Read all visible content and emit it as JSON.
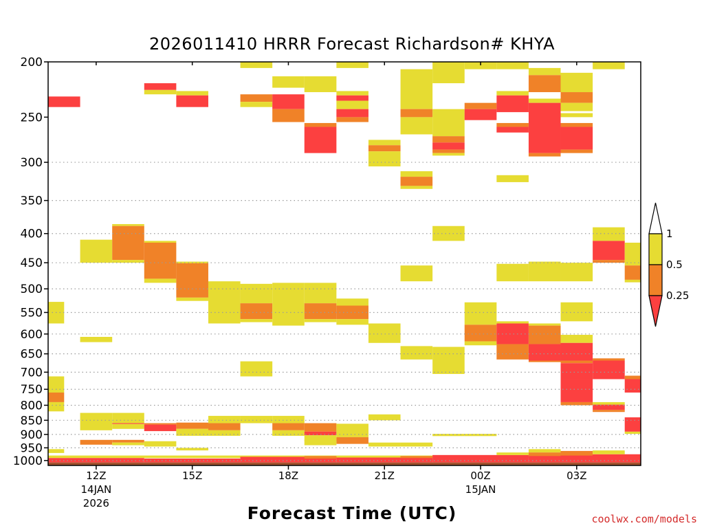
{
  "title": "2026011410 HRRR Forecast Richardson# KHYA",
  "xaxis_title": "Forecast Time (UTC)",
  "credit": "coolwx.com/models",
  "colors": {
    "ri_0_025": "#fc4040",
    "ri_025_05": "#f08228",
    "ri_05_1": "#e6dc32",
    "ground": "#a0522d",
    "grid": "#9a9a9a"
  },
  "chart_data": {
    "type": "heatmap",
    "title": "2026011410 HRRR Forecast Richardson# KHYA",
    "xlabel": "Forecast Time (UTC)",
    "ylabel": "",
    "y_scale": "log",
    "y_reversed": true,
    "ylim": [
      200,
      1020
    ],
    "y_ticks": [
      200,
      250,
      300,
      350,
      400,
      450,
      500,
      550,
      600,
      650,
      700,
      750,
      800,
      850,
      900,
      950,
      1000
    ],
    "grid_levels": [
      300,
      350,
      400,
      450,
      500,
      550,
      600,
      650,
      700,
      750,
      800,
      850,
      900,
      950,
      1000
    ],
    "x_unit": "forecast hour from 2026-01-14 10Z",
    "xlim": [
      10.5,
      28.5
    ],
    "x_ticks": [
      {
        "hour": 12,
        "label": "12Z",
        "sub": [
          "14JAN",
          "2026"
        ]
      },
      {
        "hour": 15,
        "label": "15Z",
        "sub": []
      },
      {
        "hour": 18,
        "label": "18Z",
        "sub": []
      },
      {
        "hour": 21,
        "label": "21Z",
        "sub": []
      },
      {
        "hour": 24,
        "label": "00Z",
        "sub": [
          "15JAN"
        ]
      },
      {
        "hour": 27,
        "label": "03Z",
        "sub": []
      }
    ],
    "legend": {
      "placement": "right",
      "labels": [
        {
          "value": "1",
          "at": 1
        },
        {
          "value": "0.5",
          "at": 0.5
        },
        {
          "value": "0.25",
          "at": 0.25
        }
      ],
      "bins": [
        {
          "range": "<0.25",
          "color": "#fc4040"
        },
        {
          "range": "0.25-0.5",
          "color": "#f08228"
        },
        {
          "range": "0.5-1",
          "color": "#e6dc32"
        },
        {
          "range": ">1",
          "color": "#ffffff"
        }
      ]
    },
    "categories": [
      "Ri<0.25",
      "0.25<=Ri<0.5",
      "0.5<=Ri<1"
    ],
    "cells": [
      [
        10.5,
        11.5,
        230,
        240,
        "r"
      ],
      [
        13.5,
        14.5,
        218,
        224,
        "r"
      ],
      [
        13.5,
        14.5,
        224,
        228,
        "y"
      ],
      [
        14.5,
        15.5,
        225,
        229,
        "y"
      ],
      [
        14.5,
        15.5,
        229,
        240,
        "r"
      ],
      [
        16.5,
        17.5,
        200,
        205,
        "y"
      ],
      [
        16.5,
        17.5,
        228,
        235,
        "o"
      ],
      [
        16.5,
        17.5,
        235,
        240,
        "y"
      ],
      [
        17.5,
        18.5,
        212,
        222,
        "y"
      ],
      [
        17.5,
        18.5,
        228,
        242,
        "r"
      ],
      [
        17.5,
        18.5,
        242,
        255,
        "o"
      ],
      [
        18.5,
        19.5,
        212,
        226,
        "y"
      ],
      [
        18.5,
        19.5,
        256,
        260,
        "o"
      ],
      [
        18.5,
        19.5,
        260,
        289,
        "r"
      ],
      [
        19.5,
        20.5,
        200,
        205,
        "y"
      ],
      [
        19.5,
        20.5,
        225,
        229,
        "y"
      ],
      [
        19.5,
        20.5,
        229,
        234,
        "r"
      ],
      [
        19.5,
        20.5,
        234,
        242,
        "y"
      ],
      [
        19.5,
        20.5,
        242,
        250,
        "r"
      ],
      [
        19.5,
        20.5,
        250,
        255,
        "o"
      ],
      [
        20.5,
        21.5,
        274,
        280,
        "y"
      ],
      [
        20.5,
        21.5,
        280,
        287,
        "o"
      ],
      [
        20.5,
        21.5,
        287,
        305,
        "y"
      ],
      [
        21.5,
        22.5,
        206,
        242,
        "y"
      ],
      [
        21.5,
        22.5,
        242,
        250,
        "o"
      ],
      [
        21.5,
        22.5,
        250,
        268,
        "y"
      ],
      [
        21.5,
        22.5,
        311,
        318,
        "y"
      ],
      [
        21.5,
        22.5,
        318,
        330,
        "o"
      ],
      [
        21.5,
        22.5,
        330,
        334,
        "y"
      ],
      [
        22.5,
        23.5,
        200,
        218,
        "y"
      ],
      [
        22.5,
        23.5,
        242,
        270,
        "y"
      ],
      [
        22.5,
        23.5,
        270,
        277,
        "o"
      ],
      [
        22.5,
        23.5,
        277,
        285,
        "r"
      ],
      [
        22.5,
        23.5,
        285,
        289,
        "o"
      ],
      [
        22.5,
        23.5,
        289,
        292,
        "y"
      ],
      [
        23.5,
        24.5,
        200,
        206,
        "y"
      ],
      [
        23.5,
        24.5,
        236,
        242,
        "o"
      ],
      [
        23.5,
        24.5,
        242,
        253,
        "r"
      ],
      [
        24.5,
        25.5,
        200,
        206,
        "y"
      ],
      [
        24.5,
        25.5,
        225,
        229,
        "y"
      ],
      [
        24.5,
        25.5,
        229,
        245,
        "r"
      ],
      [
        24.5,
        25.5,
        256,
        260,
        "o"
      ],
      [
        24.5,
        25.5,
        260,
        266,
        "r"
      ],
      [
        24.5,
        25.5,
        316,
        325,
        "y"
      ],
      [
        25.5,
        26.5,
        205,
        211,
        "y"
      ],
      [
        25.5,
        26.5,
        211,
        226,
        "o"
      ],
      [
        25.5,
        26.5,
        232,
        236,
        "y"
      ],
      [
        25.5,
        26.5,
        236,
        289,
        "r"
      ],
      [
        25.5,
        26.5,
        289,
        293,
        "o"
      ],
      [
        26.5,
        27.5,
        209,
        226,
        "y"
      ],
      [
        26.5,
        27.5,
        226,
        236,
        "o"
      ],
      [
        26.5,
        27.5,
        236,
        244,
        "y"
      ],
      [
        26.5,
        27.5,
        246,
        250,
        "y"
      ],
      [
        26.5,
        27.5,
        256,
        260,
        "o"
      ],
      [
        26.5,
        27.5,
        260,
        285,
        "r"
      ],
      [
        26.5,
        27.5,
        285,
        289,
        "o"
      ],
      [
        27.5,
        28.5,
        200,
        206,
        "y"
      ],
      [
        11.5,
        12.5,
        410,
        450,
        "y"
      ],
      [
        12.5,
        13.5,
        385,
        388,
        "y"
      ],
      [
        12.5,
        13.5,
        388,
        445,
        "o"
      ],
      [
        12.5,
        13.5,
        445,
        450,
        "y"
      ],
      [
        13.5,
        14.5,
        412,
        415,
        "y"
      ],
      [
        13.5,
        14.5,
        415,
        480,
        "o"
      ],
      [
        13.5,
        14.5,
        480,
        488,
        "y"
      ],
      [
        14.5,
        15.5,
        448,
        451,
        "y"
      ],
      [
        14.5,
        15.5,
        451,
        518,
        "o"
      ],
      [
        14.5,
        15.5,
        518,
        525,
        "y"
      ],
      [
        15.5,
        16.5,
        485,
        575,
        "y"
      ],
      [
        16.5,
        17.5,
        490,
        530,
        "y"
      ],
      [
        16.5,
        17.5,
        530,
        565,
        "o"
      ],
      [
        16.5,
        17.5,
        565,
        572,
        "y"
      ],
      [
        17.5,
        18.5,
        488,
        580,
        "y"
      ],
      [
        18.5,
        19.5,
        488,
        530,
        "y"
      ],
      [
        18.5,
        19.5,
        530,
        565,
        "o"
      ],
      [
        18.5,
        19.5,
        565,
        572,
        "y"
      ],
      [
        19.5,
        20.5,
        520,
        535,
        "y"
      ],
      [
        19.5,
        20.5,
        535,
        565,
        "o"
      ],
      [
        19.5,
        20.5,
        565,
        578,
        "y"
      ],
      [
        21.5,
        22.5,
        455,
        485,
        "y"
      ],
      [
        22.5,
        23.5,
        388,
        412,
        "y"
      ],
      [
        24.5,
        25.5,
        452,
        485,
        "y"
      ],
      [
        25.5,
        26.5,
        448,
        485,
        "y"
      ],
      [
        26.5,
        27.5,
        450,
        485,
        "y"
      ],
      [
        27.5,
        28.5,
        390,
        412,
        "y"
      ],
      [
        27.5,
        28.5,
        412,
        445,
        "r"
      ],
      [
        27.5,
        28.5,
        445,
        450,
        "o"
      ],
      [
        28.5,
        29.0,
        415,
        455,
        "y"
      ],
      [
        28.5,
        29.0,
        455,
        482,
        "o"
      ],
      [
        28.5,
        29.0,
        482,
        487,
        "y"
      ],
      [
        10.5,
        11.0,
        527,
        575,
        "y"
      ],
      [
        11.5,
        12.5,
        607,
        620,
        "y"
      ],
      [
        20.5,
        21.5,
        575,
        622,
        "y"
      ],
      [
        21.5,
        22.5,
        630,
        665,
        "y"
      ],
      [
        22.5,
        23.5,
        632,
        705,
        "y"
      ],
      [
        23.5,
        24.5,
        528,
        578,
        "y"
      ],
      [
        23.5,
        24.5,
        578,
        618,
        "o"
      ],
      [
        23.5,
        24.5,
        618,
        628,
        "y"
      ],
      [
        24.5,
        25.5,
        570,
        575,
        "y"
      ],
      [
        24.5,
        25.5,
        575,
        625,
        "r"
      ],
      [
        24.5,
        25.5,
        625,
        665,
        "o"
      ],
      [
        25.5,
        26.5,
        575,
        580,
        "y"
      ],
      [
        25.5,
        26.5,
        580,
        625,
        "o"
      ],
      [
        25.5,
        26.5,
        625,
        668,
        "r"
      ],
      [
        25.5,
        26.5,
        668,
        672,
        "o"
      ],
      [
        26.5,
        27.5,
        528,
        570,
        "y"
      ],
      [
        26.5,
        27.5,
        602,
        622,
        "y"
      ],
      [
        26.5,
        27.5,
        622,
        668,
        "r"
      ],
      [
        26.5,
        27.5,
        668,
        675,
        "o"
      ],
      [
        26.5,
        27.5,
        675,
        720,
        "r"
      ],
      [
        26.5,
        27.5,
        720,
        790,
        "r"
      ],
      [
        26.5,
        27.5,
        790,
        800,
        "o"
      ],
      [
        27.5,
        28.5,
        662,
        668,
        "o"
      ],
      [
        27.5,
        28.5,
        668,
        720,
        "r"
      ],
      [
        27.5,
        28.5,
        790,
        798,
        "y"
      ],
      [
        27.5,
        28.5,
        798,
        815,
        "r"
      ],
      [
        27.5,
        28.5,
        815,
        822,
        "o"
      ],
      [
        28.5,
        29.0,
        710,
        720,
        "o"
      ],
      [
        28.5,
        29.0,
        720,
        760,
        "r"
      ],
      [
        28.5,
        29.0,
        840,
        890,
        "r"
      ],
      [
        28.5,
        29.0,
        890,
        898,
        "y"
      ],
      [
        16.5,
        17.5,
        670,
        712,
        "y"
      ],
      [
        10.5,
        11.0,
        712,
        760,
        "y"
      ],
      [
        10.5,
        11.0,
        760,
        790,
        "o"
      ],
      [
        10.5,
        11.0,
        790,
        820,
        "y"
      ],
      [
        11.5,
        12.5,
        825,
        885,
        "y"
      ],
      [
        12.5,
        13.5,
        825,
        860,
        "y"
      ],
      [
        12.5,
        13.5,
        860,
        863,
        "r"
      ],
      [
        12.5,
        13.5,
        863,
        880,
        "y"
      ],
      [
        13.5,
        14.5,
        860,
        865,
        "o"
      ],
      [
        13.5,
        14.5,
        865,
        888,
        "r"
      ],
      [
        14.5,
        15.5,
        858,
        880,
        "o"
      ],
      [
        14.5,
        15.5,
        880,
        905,
        "y"
      ],
      [
        15.5,
        16.5,
        835,
        860,
        "y"
      ],
      [
        15.5,
        16.5,
        860,
        885,
        "o"
      ],
      [
        15.5,
        16.5,
        885,
        905,
        "y"
      ],
      [
        16.5,
        17.5,
        835,
        860,
        "y"
      ],
      [
        17.5,
        18.5,
        835,
        860,
        "y"
      ],
      [
        17.5,
        18.5,
        860,
        885,
        "o"
      ],
      [
        17.5,
        18.5,
        885,
        905,
        "y"
      ],
      [
        18.5,
        19.5,
        860,
        890,
        "o"
      ],
      [
        18.5,
        19.5,
        890,
        903,
        "r"
      ],
      [
        18.5,
        19.5,
        903,
        925,
        "y"
      ],
      [
        19.5,
        20.5,
        862,
        910,
        "y"
      ],
      [
        19.5,
        20.5,
        910,
        935,
        "o"
      ],
      [
        20.5,
        21.5,
        830,
        850,
        "y"
      ],
      [
        22.5,
        23.5,
        898,
        906,
        "y"
      ],
      [
        23.5,
        24.5,
        898,
        906,
        "y"
      ],
      [
        11.5,
        12.5,
        920,
        938,
        "o"
      ],
      [
        12.5,
        13.5,
        920,
        930,
        "o"
      ],
      [
        12.5,
        13.5,
        930,
        940,
        "y"
      ],
      [
        13.5,
        14.5,
        925,
        945,
        "y"
      ],
      [
        14.5,
        15.5,
        950,
        960,
        "y"
      ],
      [
        10.5,
        11.0,
        955,
        970,
        "y"
      ],
      [
        18.5,
        19.5,
        920,
        940,
        "y"
      ],
      [
        20.5,
        21.5,
        930,
        945,
        "y"
      ],
      [
        21.5,
        22.5,
        930,
        945,
        "y"
      ],
      [
        10.5,
        29.0,
        980,
        990,
        "y"
      ],
      [
        10.5,
        13.5,
        990,
        1008,
        "r"
      ],
      [
        13.5,
        16.5,
        992,
        1008,
        "r"
      ],
      [
        16.5,
        19.5,
        985,
        1008,
        "r"
      ],
      [
        19.5,
        22.5,
        988,
        1008,
        "r"
      ],
      [
        22.5,
        25.5,
        978,
        1008,
        "r"
      ],
      [
        25.5,
        29.0,
        975,
        1008,
        "r"
      ],
      [
        18.5,
        19.5,
        982,
        992,
        "o"
      ],
      [
        21.5,
        22.5,
        982,
        990,
        "o"
      ],
      [
        24.5,
        25.5,
        968,
        978,
        "y"
      ],
      [
        25.5,
        26.5,
        955,
        968,
        "y"
      ],
      [
        25.5,
        26.5,
        968,
        982,
        "o"
      ],
      [
        26.5,
        27.5,
        962,
        980,
        "o"
      ],
      [
        27.5,
        28.5,
        960,
        975,
        "y"
      ]
    ],
    "ground_from": 1008
  }
}
